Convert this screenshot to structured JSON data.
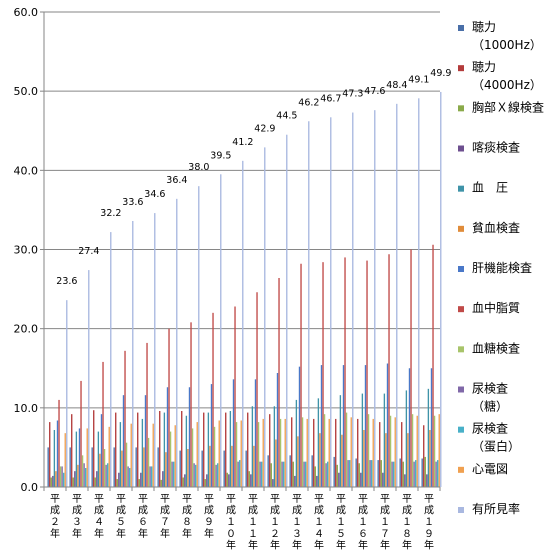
{
  "chart_data": {
    "type": "bar",
    "ylim": [
      0,
      60
    ],
    "yticks": [
      "0.0",
      "10.0",
      "20.0",
      "30.0",
      "40.0",
      "50.0",
      "60.0"
    ],
    "grid": true,
    "legend_position": "right",
    "categories": [
      "平成２年",
      "平成３年",
      "平成４年",
      "平成５年",
      "平成６年",
      "平成７年",
      "平成８年",
      "平成９年",
      "平成１０年",
      "平成１１年",
      "平成１２年",
      "平成１３年",
      "平成１４年",
      "平成１５年",
      "平成１６年",
      "平成１７年",
      "平成１８年",
      "平成１９年"
    ],
    "series": [
      {
        "name": "聴力",
        "sub": "（1000Hz）",
        "color": "#4a6fa8",
        "values": [
          5.0,
          5.0,
          5.0,
          5.0,
          5.0,
          5.0,
          4.6,
          4.6,
          4.6,
          4.6,
          4.0,
          4.0,
          4.0,
          3.8,
          3.6,
          3.4,
          3.6,
          3.6
        ]
      },
      {
        "name": "聴力",
        "sub": "（4000Hz）",
        "color": "#b33b3b",
        "values": [
          8.2,
          9.2,
          9.7,
          9.4,
          9.4,
          9.6,
          9.6,
          9.4,
          9.4,
          9.4,
          9.2,
          8.8,
          8.6,
          8.6,
          8.6,
          8.2,
          8.2,
          7.8
        ]
      },
      {
        "name": "胸部Ｘ線検査",
        "color": "#8aaa4a",
        "values": [
          1.2,
          1.2,
          1.2,
          1.0,
          1.0,
          0.9,
          1.2,
          1.0,
          1.8,
          2.0,
          3.0,
          3.2,
          2.6,
          2.8,
          3.0,
          3.4,
          3.2,
          3.8
        ]
      },
      {
        "name": "喀痰検査",
        "color": "#6d4f8f",
        "values": [
          1.4,
          2.0,
          2.0,
          1.8,
          1.8,
          2.0,
          1.6,
          1.6,
          1.6,
          1.6,
          1.0,
          1.4,
          1.4,
          1.8,
          1.8,
          1.8,
          1.6,
          1.6
        ]
      },
      {
        "name": "血　圧",
        "color": "#3f93a8",
        "values": [
          7.2,
          7.0,
          7.0,
          8.2,
          8.6,
          9.4,
          9.0,
          9.4,
          9.6,
          10.2,
          10.2,
          11.0,
          11.2,
          11.6,
          11.8,
          11.8,
          12.2,
          12.4
        ]
      },
      {
        "name": "貧血検査",
        "color": "#e08c3a",
        "values": [
          2.0,
          2.8,
          4.2,
          4.6,
          5.0,
          4.4,
          4.8,
          5.2,
          5.2,
          5.2,
          6.0,
          6.4,
          6.8,
          6.6,
          7.2,
          6.8,
          6.8,
          7.2
        ]
      },
      {
        "name": "肝機能検査",
        "color": "#4a78c8",
        "values": [
          8.4,
          7.4,
          9.2,
          11.6,
          11.6,
          12.6,
          12.6,
          13.0,
          13.6,
          13.6,
          14.4,
          15.2,
          15.4,
          15.4,
          15.4,
          15.6,
          15.0,
          15.0
        ]
      },
      {
        "name": "血中脂質",
        "color": "#c04a48",
        "values": [
          11.0,
          13.4,
          15.8,
          17.2,
          18.2,
          20.0,
          20.8,
          22.0,
          22.8,
          24.6,
          26.4,
          28.2,
          28.4,
          29.0,
          28.6,
          29.4,
          30.0,
          30.6
        ]
      },
      {
        "name": "血糖検査",
        "color": "#a8c46a",
        "values": [
          2.6,
          4.0,
          4.8,
          5.6,
          6.2,
          7.0,
          7.4,
          7.6,
          8.2,
          8.2,
          8.6,
          8.8,
          9.2,
          9.4,
          9.2,
          9.0,
          9.2,
          9.0
        ]
      },
      {
        "name": "尿検査",
        "sub": "（糖）",
        "color": "#8068a8",
        "values": [
          2.6,
          3.0,
          2.8,
          2.6,
          2.6,
          3.2,
          3.0,
          2.8,
          3.2,
          3.2,
          3.2,
          3.2,
          3.0,
          3.4,
          3.4,
          3.2,
          3.2,
          3.2
        ]
      },
      {
        "name": "尿検査",
        "sub": "（蛋白）",
        "color": "#48b0c8",
        "values": [
          1.8,
          2.4,
          3.0,
          2.4,
          2.6,
          3.2,
          2.8,
          3.0,
          3.4,
          3.2,
          3.2,
          3.2,
          3.2,
          3.4,
          3.4,
          3.2,
          3.4,
          3.4
        ]
      },
      {
        "name": "心電図",
        "color": "#f0a050",
        "values": [
          6.8,
          7.4,
          7.6,
          8.0,
          8.0,
          7.8,
          8.2,
          8.4,
          8.4,
          8.6,
          8.6,
          8.6,
          8.6,
          8.8,
          8.6,
          8.8,
          9.0,
          9.2
        ]
      },
      {
        "name": "有所見率",
        "color": "#a9b8e0",
        "values": [
          23.6,
          27.4,
          32.2,
          33.6,
          34.6,
          36.4,
          38.0,
          39.5,
          41.2,
          42.9,
          44.5,
          46.2,
          46.7,
          47.3,
          47.6,
          48.4,
          49.1,
          49.9
        ],
        "labels": [
          "23.6",
          "27.4",
          "32.2",
          "33.6",
          "34.6",
          "36.4",
          "38.0",
          "39.5",
          "41.2",
          "42.9",
          "44.5",
          "46.2",
          "46.7",
          "47.3",
          "47.6",
          "48.4",
          "49.1",
          "49.9"
        ]
      }
    ]
  }
}
